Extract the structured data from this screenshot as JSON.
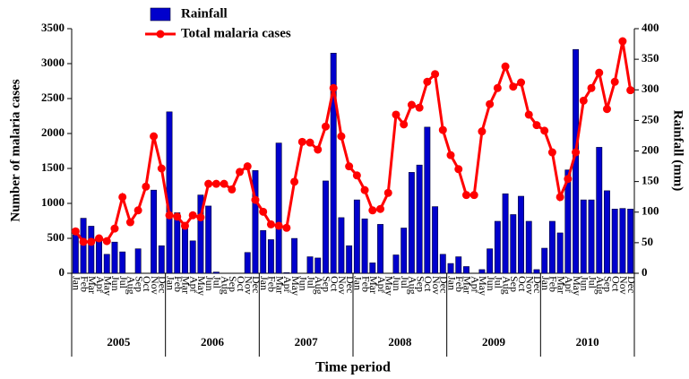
{
  "chart_data": {
    "type": "bar-line",
    "x_label": "Time period",
    "y_label": "Number of malaria cases",
    "y2_label": "Rainfall (mm)",
    "categories": [
      "Jan",
      "Feb",
      "Mar",
      "Apr",
      "May",
      "Jun",
      "Jul",
      "Aug",
      "Sep",
      "Oct",
      "Nov",
      "Dec",
      "Jan",
      "Feb",
      "Mar",
      "Apr",
      "May",
      "Jun",
      "Jul",
      "Aug",
      "Sep",
      "Oct",
      "Nov",
      "Dec",
      "Jan",
      "Feb",
      "Mar",
      "Apr",
      "May",
      "Jun",
      "Jul",
      "Aug",
      "Sep",
      "Oct",
      "Nov",
      "Dec",
      "Jan",
      "Feb",
      "Mar",
      "Apr",
      "May",
      "Jun",
      "Jul",
      "Aug",
      "Sep",
      "Oct",
      "Nov",
      "Dec",
      "Jan",
      "Feb",
      "Mar",
      "Apr",
      "May",
      "Jun",
      "Jul",
      "Aug",
      "Sep",
      "Oct",
      "Nov",
      "Dec",
      "Jan",
      "Feb",
      "Mar",
      "Apr",
      "May",
      "Jun",
      "Jul",
      "Aug",
      "Sep",
      "Oct",
      "Nov",
      "Dec"
    ],
    "year_groups": [
      "2005",
      "2006",
      "2007",
      "2008",
      "2009",
      "2010"
    ],
    "series": [
      {
        "name": "Rainfall",
        "kind": "bar",
        "axis": "y2",
        "color": "#0000cc",
        "values": [
          63,
          90,
          77,
          57,
          31,
          51,
          35,
          0,
          40,
          0,
          136,
          45,
          264,
          99,
          78,
          53,
          128,
          110,
          2,
          0,
          0,
          0,
          34,
          168,
          70,
          55,
          213,
          1,
          57,
          0,
          27,
          25,
          151,
          360,
          91,
          45,
          120,
          89,
          17,
          80,
          0,
          30,
          74,
          165,
          177,
          239,
          109,
          31,
          16,
          27,
          11,
          0,
          6,
          40,
          85,
          130,
          96,
          126,
          85,
          6,
          41,
          85,
          66,
          169,
          366,
          120,
          120,
          206,
          135,
          105,
          106,
          105
        ]
      },
      {
        "name": "Total malaria cases",
        "kind": "line",
        "color": "#ff0000",
        "values": [
          600,
          450,
          450,
          500,
          460,
          640,
          1090,
          730,
          900,
          1240,
          1960,
          1500,
          830,
          810,
          680,
          830,
          800,
          1280,
          1280,
          1280,
          1200,
          1450,
          1530,
          1050,
          880,
          700,
          680,
          650,
          1310,
          1880,
          1870,
          1770,
          2100,
          2650,
          1960,
          1530,
          1400,
          1190,
          900,
          920,
          1150,
          2270,
          2130,
          2410,
          2370,
          2740,
          2850,
          2050,
          1690,
          1490,
          1120,
          1120,
          2030,
          2420,
          2650,
          2960,
          2670,
          2730,
          2270,
          2120,
          2040,
          1730,
          1090,
          1350,
          1730,
          2470,
          2650,
          2870,
          2350,
          2740,
          3320,
          2620
        ]
      }
    ],
    "ylim": [
      0,
      3500
    ],
    "yticks": [
      0,
      500,
      1000,
      1500,
      2000,
      2500,
      3000,
      3500
    ],
    "y2lim": [
      0,
      400
    ],
    "y2ticks": [
      0,
      50,
      100,
      150,
      200,
      250,
      300,
      350,
      400
    ],
    "legend": "upper-left"
  }
}
